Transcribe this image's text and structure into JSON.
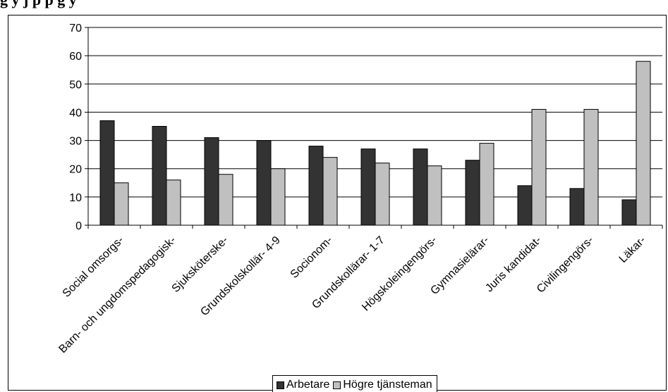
{
  "title": "g          y  j     p       p  g            y",
  "chart_data": {
    "type": "bar",
    "title": "",
    "xlabel": "",
    "ylabel": "",
    "ylim": [
      0,
      70
    ],
    "yticks": [
      0,
      10,
      20,
      30,
      40,
      50,
      60,
      70
    ],
    "grid": true,
    "legend_position": "bottom",
    "categories": [
      "Social omsorgs-",
      "Barn- och ungdomspedagogisk-",
      "Sjuksköterske-",
      "Grundskolskollär- 4-9",
      "Socionom-",
      "Grundskollärar- 1-7",
      "Högskoleingengörs-",
      "Gymnasielärar-",
      "Juris kandidat-",
      "Civilingengörs-",
      "Läkar-"
    ],
    "series": [
      {
        "name": "Arbetare",
        "color": "#333333",
        "values": [
          37,
          35,
          31,
          30,
          28,
          27,
          27,
          23,
          14,
          13,
          9
        ]
      },
      {
        "name": "Högre tjänsteman",
        "color": "#c0c0c0",
        "values": [
          15,
          16,
          18,
          20,
          24,
          22,
          21,
          29,
          41,
          41,
          58
        ]
      }
    ]
  }
}
